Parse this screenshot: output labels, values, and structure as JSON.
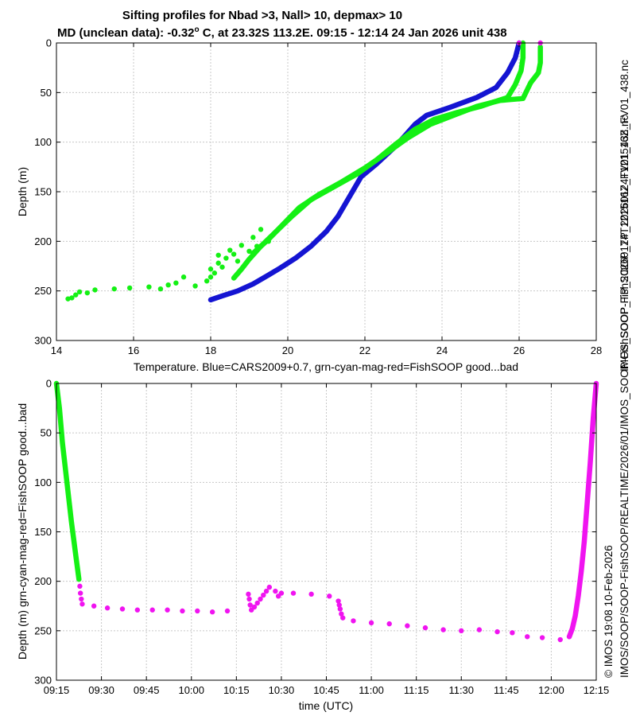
{
  "titles": {
    "line1": "Sifting profiles for Nbad >3, Nall> 10, depmax> 10",
    "line2_pre": "MD (unclean data): -0.32",
    "degree": "o",
    "line2_post": " C, at 23.32S 113.2E. 09:15 - 12:14 24 Jan 2026 unit 438"
  },
  "side_text": {
    "right": "IMOS_SOOP-FishSOOP_TP_20260124T121516Z_FV01_438.nc",
    "bottom": "IMOS/SOOP/SOOP-FishSOOP/REALTIME/2026/01/IMOS_SOOP-FishSOOP_TP_20260124T121516Z_FV01_438.nc",
    "credit": "© IMOS 19:08 10-Feb-2026"
  },
  "colors": {
    "cars": "#1414d2",
    "good": "#14f014",
    "bad": "#f014f0",
    "grid": "#c8c8c8"
  },
  "chart_data": [
    {
      "type": "scatter",
      "name": "temperature-profile",
      "xlabel": "Temperature. Blue=CARS2009+0.7, grn-cyan-mag-red=FishSOOP good...bad",
      "ylabel": "Depth (m)",
      "xlim": [
        14,
        28
      ],
      "ylim": [
        0,
        300
      ],
      "y_reversed": true,
      "xticks": [
        14,
        16,
        18,
        20,
        22,
        24,
        26,
        28
      ],
      "yticks": [
        0,
        50,
        100,
        150,
        200,
        250,
        300
      ],
      "grid": true,
      "series": [
        {
          "name": "CARS2009+0.7",
          "color": "#1414d2",
          "marker": "dense-line",
          "points": [
            [
              18.0,
              259
            ],
            [
              18.3,
              255
            ],
            [
              18.7,
              250
            ],
            [
              19.1,
              243
            ],
            [
              19.5,
              234
            ],
            [
              19.8,
              227
            ],
            [
              20.2,
              217
            ],
            [
              20.6,
              205
            ],
            [
              21.0,
              190
            ],
            [
              21.3,
              175
            ],
            [
              21.6,
              155
            ],
            [
              21.9,
              135
            ],
            [
              22.3,
              122
            ],
            [
              22.8,
              104
            ],
            [
              23.3,
              82
            ],
            [
              23.6,
              73
            ],
            [
              24.2,
              65
            ],
            [
              24.9,
              55
            ],
            [
              25.4,
              45
            ],
            [
              25.7,
              30
            ],
            [
              25.9,
              15
            ],
            [
              26.0,
              0
            ]
          ]
        },
        {
          "name": "FishSOOP good (downcast)",
          "color": "#14f014",
          "marker": "dense-line",
          "points": [
            [
              26.1,
              0
            ],
            [
              26.1,
              15
            ],
            [
              26.05,
              28
            ],
            [
              25.9,
              42
            ],
            [
              25.7,
              55
            ],
            [
              25.3,
              60
            ],
            [
              25.0,
              64
            ],
            [
              24.4,
              70
            ],
            [
              23.8,
              77
            ],
            [
              23.3,
              87
            ],
            [
              22.8,
              102
            ],
            [
              22.3,
              118
            ],
            [
              21.8,
              132
            ],
            [
              21.2,
              145
            ],
            [
              20.6,
              158
            ],
            [
              20.1,
              175
            ],
            [
              19.7,
              190
            ],
            [
              19.3,
              205
            ],
            [
              19.0,
              218
            ],
            [
              18.8,
              228
            ],
            [
              18.6,
              237
            ]
          ]
        },
        {
          "name": "FishSOOP good (upcast)",
          "color": "#14f014",
          "marker": "dense-line",
          "points": [
            [
              26.55,
              4
            ],
            [
              26.55,
              20
            ],
            [
              26.5,
              30
            ],
            [
              26.3,
              40
            ],
            [
              26.1,
              56
            ],
            [
              25.5,
              58
            ],
            [
              24.9,
              64
            ],
            [
              24.3,
              73
            ],
            [
              23.7,
              82
            ],
            [
              23.1,
              96
            ],
            [
              22.6,
              110
            ],
            [
              22.0,
              126
            ],
            [
              21.4,
              140
            ],
            [
              20.8,
              153
            ],
            [
              20.3,
              166
            ],
            [
              19.9,
              182
            ],
            [
              19.5,
              198
            ],
            [
              19.1,
              212
            ]
          ]
        },
        {
          "name": "FishSOOP good (scattered)",
          "color": "#14f014",
          "marker": "dot",
          "points": [
            [
              14.3,
              258
            ],
            [
              14.4,
              257
            ],
            [
              14.5,
              254
            ],
            [
              14.6,
              251
            ],
            [
              14.8,
              252
            ],
            [
              15.0,
              249
            ],
            [
              15.5,
              248
            ],
            [
              15.9,
              247
            ],
            [
              16.4,
              246
            ],
            [
              16.7,
              248
            ],
            [
              16.9,
              244
            ],
            [
              17.1,
              242
            ],
            [
              17.3,
              236
            ],
            [
              17.6,
              245
            ],
            [
              17.9,
              240
            ],
            [
              18.0,
              236
            ],
            [
              18.1,
              232
            ],
            [
              18.0,
              228
            ],
            [
              18.2,
              222
            ],
            [
              18.4,
              217
            ],
            [
              18.3,
              226
            ],
            [
              18.6,
              213
            ],
            [
              18.7,
              220
            ],
            [
              19.0,
              210
            ],
            [
              19.2,
              205
            ],
            [
              19.5,
              200
            ],
            [
              18.2,
              214
            ],
            [
              18.5,
              209
            ],
            [
              18.8,
              204
            ],
            [
              19.1,
              196
            ],
            [
              19.3,
              188
            ]
          ]
        },
        {
          "name": "FishSOOP bad (surface)",
          "color": "#f014f0",
          "marker": "dot",
          "points": [
            [
              26.0,
              0
            ],
            [
              26.55,
              0
            ]
          ]
        }
      ]
    },
    {
      "type": "scatter",
      "name": "depth-time",
      "xlabel": "time (UTC)",
      "ylabel": "Depth (m) grn-cyan-mag-red=FishSOOP good...bad",
      "xlim_minutes": [
        555,
        735
      ],
      "ylim": [
        0,
        300
      ],
      "y_reversed": true,
      "xticks": [
        "09:15",
        "09:30",
        "09:45",
        "10:00",
        "10:15",
        "10:30",
        "10:45",
        "11:00",
        "11:15",
        "11:30",
        "11:45",
        "12:00",
        "12:15"
      ],
      "yticks": [
        0,
        50,
        100,
        150,
        200,
        250,
        300
      ],
      "grid": true,
      "series": [
        {
          "name": "descent good",
          "color": "#14f014",
          "marker": "dense-line",
          "points": [
            [
              555,
              0
            ],
            [
              556,
              25
            ],
            [
              557,
              60
            ],
            [
              558.5,
              100
            ],
            [
              560,
              140
            ],
            [
              561.5,
              175
            ],
            [
              562.5,
              198
            ]
          ]
        },
        {
          "name": "bottom bad",
          "color": "#f014f0",
          "marker": "dot",
          "points": [
            [
              562.8,
              205
            ],
            [
              563,
              212
            ],
            [
              563.3,
              218
            ],
            [
              563.6,
              223
            ],
            [
              567.5,
              225
            ],
            [
              572,
              227
            ],
            [
              577,
              228
            ],
            [
              582,
              229
            ],
            [
              587,
              229
            ],
            [
              592,
              229
            ],
            [
              597,
              230
            ],
            [
              602,
              230
            ],
            [
              607,
              231
            ],
            [
              612,
              230
            ],
            [
              619,
              213
            ],
            [
              619.3,
              218
            ],
            [
              619.6,
              224
            ],
            [
              620,
              229
            ],
            [
              621,
              226
            ],
            [
              622,
              222
            ],
            [
              623,
              218
            ],
            [
              624,
              214
            ],
            [
              625,
              210
            ],
            [
              626,
              206
            ],
            [
              628,
              210
            ],
            [
              629,
              215
            ],
            [
              630,
              212
            ],
            [
              634,
              212
            ],
            [
              640,
              213
            ],
            [
              646,
              215
            ],
            [
              649,
              220
            ],
            [
              649.3,
              224
            ],
            [
              649.6,
              228
            ],
            [
              650,
              233
            ],
            [
              650.5,
              237
            ],
            [
              654,
              240
            ],
            [
              660,
              242
            ],
            [
              666,
              243
            ],
            [
              672,
              245
            ],
            [
              678,
              247
            ],
            [
              684,
              249
            ],
            [
              690,
              250
            ],
            [
              696,
              249
            ],
            [
              702,
              251
            ],
            [
              707,
              252
            ],
            [
              712,
              256
            ],
            [
              717,
              257
            ],
            [
              723,
              259
            ]
          ]
        },
        {
          "name": "ascent bad",
          "color": "#f014f0",
          "marker": "dense-line",
          "points": [
            [
              726,
              256
            ],
            [
              727,
              248
            ],
            [
              728,
              235
            ],
            [
              729,
              215
            ],
            [
              730,
              190
            ],
            [
              731,
              160
            ],
            [
              732,
              120
            ],
            [
              733,
              80
            ],
            [
              734,
              35
            ],
            [
              735,
              0
            ]
          ]
        }
      ]
    }
  ]
}
